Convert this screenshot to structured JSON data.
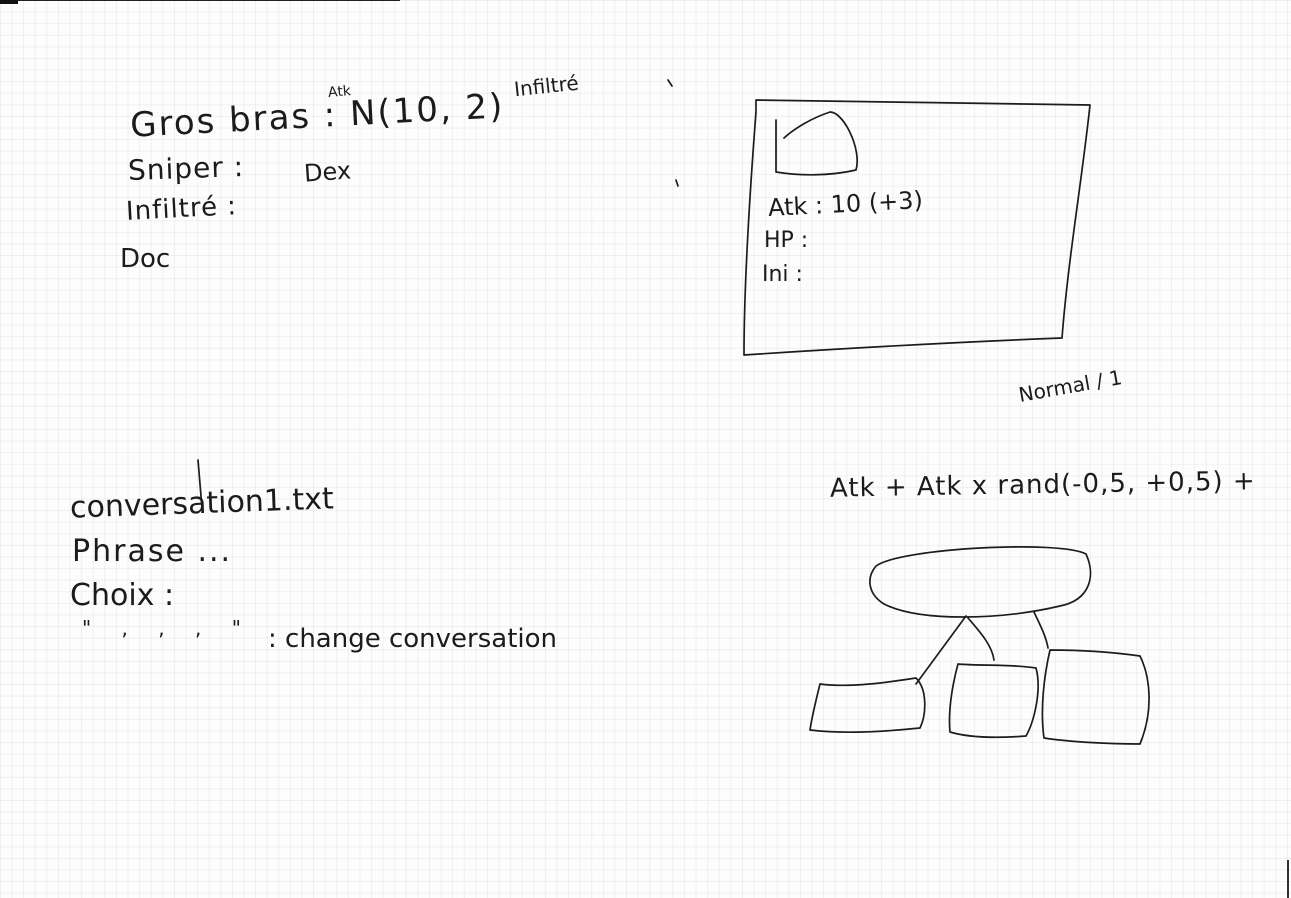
{
  "notes_left": {
    "line1": "Gros bras : N(10, 2)",
    "line1_superscript": "Atk",
    "line2_label": "Sniper :",
    "line2_value": "Dex",
    "line3": "Infiltré :",
    "line4": "Doc",
    "side_note": "Infiltré"
  },
  "card": {
    "stat1": "Atk : 10 (+3)",
    "stat2": "HP :",
    "stat3": "Ini :"
  },
  "right_notes": {
    "normal": "Normal / 1",
    "formula": "Atk + Atk x rand(-0,5, +0,5) +"
  },
  "conversation": {
    "file": "conversation1.txt",
    "phrase": "Phrase ...",
    "choix": "Choix :",
    "change_marks": "\" , , , \"",
    "change_label": ": change conversation"
  }
}
